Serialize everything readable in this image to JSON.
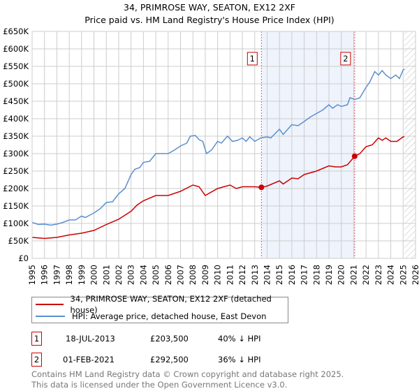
{
  "chart_data": {
    "type": "line",
    "title": "34, PRIMROSE WAY, SEATON, EX12 2XF",
    "subtitle": "Price paid vs. HM Land Registry's House Price Index (HPI)",
    "xlim": [
      1995,
      2026
    ],
    "ylim": [
      0,
      650000
    ],
    "x_ticks": [
      "1995",
      "1996",
      "1997",
      "1998",
      "1999",
      "2000",
      "2001",
      "2002",
      "2003",
      "2004",
      "2005",
      "2006",
      "2007",
      "2008",
      "2009",
      "2010",
      "2011",
      "2012",
      "2013",
      "2014",
      "2015",
      "2016",
      "2017",
      "2018",
      "2019",
      "2020",
      "2021",
      "2022",
      "2023",
      "2024",
      "2025",
      "2026"
    ],
    "y_ticks": [
      {
        "v": 0,
        "label": "£0"
      },
      {
        "v": 50000,
        "label": "£50K"
      },
      {
        "v": 100000,
        "label": "£100K"
      },
      {
        "v": 150000,
        "label": "£150K"
      },
      {
        "v": 200000,
        "label": "£200K"
      },
      {
        "v": 250000,
        "label": "£250K"
      },
      {
        "v": 300000,
        "label": "£300K"
      },
      {
        "v": 350000,
        "label": "£350K"
      },
      {
        "v": 400000,
        "label": "£400K"
      },
      {
        "v": 450000,
        "label": "£450K"
      },
      {
        "v": 500000,
        "label": "£500K"
      },
      {
        "v": 550000,
        "label": "£550K"
      },
      {
        "v": 600000,
        "label": "£600K"
      },
      {
        "v": 650000,
        "label": "£650K"
      }
    ],
    "grid": true,
    "shaded_period": [
      2013.54,
      2021.08
    ],
    "forecast_hatch_from": 2025.1,
    "series": [
      {
        "name": "34, PRIMROSE WAY, SEATON, EX12 2XF (detached house)",
        "color": "#cc0000",
        "x": [
          1995,
          1996,
          1997,
          1998,
          1999,
          2000,
          2001,
          2002,
          2003,
          2003.5,
          2004,
          2005,
          2006,
          2007,
          2008,
          2008.5,
          2009,
          2010,
          2011,
          2011.5,
          2012,
          2013,
          2013.54,
          2014,
          2015,
          2015.3,
          2016,
          2016.5,
          2017,
          2018,
          2019,
          2019.5,
          2020,
          2020.5,
          2021.08,
          2021.5,
          2022,
          2022.5,
          2023,
          2023.3,
          2023.6,
          2024,
          2024.5,
          2025,
          2025.1
        ],
        "y": [
          60,
          57,
          60,
          67,
          72,
          80,
          97,
          112,
          135,
          153,
          165,
          180,
          180,
          192,
          210,
          205,
          180,
          200,
          210,
          200,
          205,
          205,
          203.5,
          207,
          222,
          213,
          230,
          228,
          240,
          250,
          265,
          262,
          262,
          268,
          292.5,
          300,
          320,
          325,
          345,
          338,
          345,
          335,
          335,
          348,
          348
        ]
      },
      {
        "name": "HPI: Average price, detached house, East Devon",
        "color": "#5b8fd0",
        "x": [
          1995,
          1995.5,
          1996,
          1996.5,
          1997,
          1997.5,
          1998,
          1998.5,
          1999,
          1999.3,
          2000,
          2000.5,
          2001,
          2001.5,
          2002,
          2002.5,
          2003,
          2003.3,
          2003.7,
          2004,
          2004.5,
          2005,
          2005.5,
          2006,
          2006.5,
          2007,
          2007.5,
          2007.8,
          2008.2,
          2008.5,
          2008.8,
          2009.1,
          2009.5,
          2010,
          2010.3,
          2010.8,
          2011.2,
          2011.6,
          2012,
          2012.3,
          2012.6,
          2013,
          2013.5,
          2014,
          2014.3,
          2015,
          2015.3,
          2016,
          2016.5,
          2017,
          2017.5,
          2018,
          2018.5,
          2019,
          2019.3,
          2019.7,
          2020,
          2020.5,
          2020.7,
          2021.1,
          2021.5,
          2022,
          2022.3,
          2022.7,
          2023,
          2023.3,
          2023.6,
          2024,
          2024.4,
          2024.7,
          2025,
          2025.1
        ],
        "y": [
          103,
          97,
          98,
          95,
          98,
          103,
          110,
          110,
          121,
          117,
          130,
          142,
          160,
          162,
          185,
          200,
          240,
          255,
          260,
          275,
          278,
          300,
          300,
          300,
          310,
          322,
          330,
          350,
          352,
          340,
          335,
          300,
          310,
          335,
          330,
          350,
          335,
          338,
          345,
          335,
          348,
          335,
          345,
          348,
          345,
          370,
          355,
          383,
          380,
          392,
          405,
          415,
          425,
          440,
          430,
          440,
          435,
          440,
          460,
          455,
          460,
          490,
          505,
          535,
          525,
          538,
          525,
          515,
          525,
          515,
          540,
          542
        ]
      }
    ],
    "y_units": "thousands GBP",
    "markers": [
      {
        "label": "1",
        "x": 2013.54,
        "y": 203.5
      },
      {
        "label": "2",
        "x": 2021.08,
        "y": 292.5
      }
    ]
  },
  "legend": {
    "red": "34, PRIMROSE WAY, SEATON, EX12 2XF (detached house)",
    "blue": "HPI: Average price, detached house, East Devon"
  },
  "transactions": [
    {
      "num": "1",
      "date": "18-JUL-2013",
      "price": "£203,500",
      "hpi": "40% ↓ HPI"
    },
    {
      "num": "2",
      "date": "01-FEB-2021",
      "price": "£292,500",
      "hpi": "36% ↓ HPI"
    }
  ],
  "footer": {
    "line1": "Contains HM Land Registry data © Crown copyright and database right 2025.",
    "line2": "This data is licensed under the Open Government Licence v3.0."
  }
}
